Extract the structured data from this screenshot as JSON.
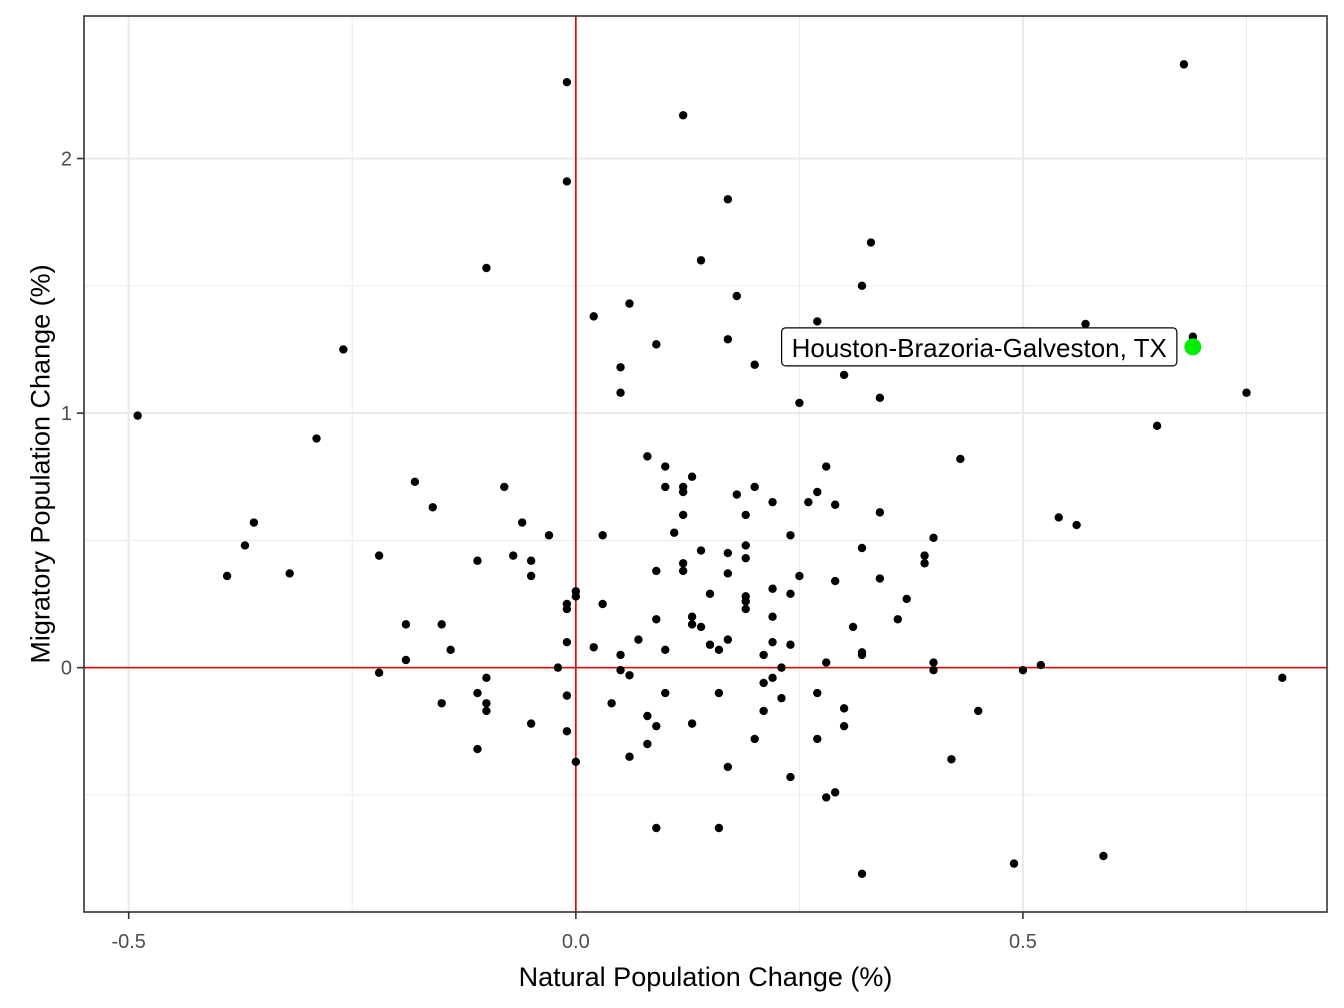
{
  "chart_data": {
    "type": "scatter",
    "title": "",
    "xlabel": "Natural Population Change (%)",
    "ylabel": "Migratory Population Change (%)",
    "xlim": [
      -0.55,
      0.84
    ],
    "ylim": [
      -0.96,
      2.56
    ],
    "x_ticks": [
      {
        "value": -0.5,
        "label": "-0.5"
      },
      {
        "value": 0.0,
        "label": "0.0"
      },
      {
        "value": 0.5,
        "label": "0.5"
      }
    ],
    "y_ticks": [
      {
        "value": 0,
        "label": "0"
      },
      {
        "value": 1,
        "label": "1"
      },
      {
        "value": 2,
        "label": "2"
      }
    ],
    "x_minor_ticks": [
      -0.25,
      0.25,
      0.75
    ],
    "y_minor_ticks": [
      -0.5,
      0.5,
      1.5
    ],
    "grid": true,
    "reference_lines": {
      "x": 0,
      "y": 0,
      "color": "#dd0000"
    },
    "point_color": "#000000",
    "highlight": {
      "x": 0.69,
      "y": 1.26,
      "label": "Houston-Brazoria-Galveston, TX",
      "color": "#00ee00"
    },
    "points": [
      [
        -0.49,
        0.99
      ],
      [
        -0.39,
        0.36
      ],
      [
        -0.37,
        0.48
      ],
      [
        -0.36,
        0.57
      ],
      [
        -0.32,
        0.37
      ],
      [
        -0.29,
        0.9
      ],
      [
        -0.26,
        1.25
      ],
      [
        -0.22,
        0.44
      ],
      [
        -0.22,
        -0.02
      ],
      [
        -0.19,
        0.17
      ],
      [
        -0.19,
        0.03
      ],
      [
        -0.18,
        0.73
      ],
      [
        -0.16,
        0.63
      ],
      [
        -0.15,
        0.17
      ],
      [
        -0.15,
        -0.14
      ],
      [
        -0.14,
        0.07
      ],
      [
        -0.11,
        0.42
      ],
      [
        -0.11,
        -0.1
      ],
      [
        -0.11,
        -0.32
      ],
      [
        -0.1,
        1.57
      ],
      [
        -0.1,
        -0.04
      ],
      [
        -0.1,
        -0.14
      ],
      [
        -0.1,
        -0.17
      ],
      [
        -0.08,
        0.71
      ],
      [
        -0.07,
        0.44
      ],
      [
        -0.06,
        0.57
      ],
      [
        -0.05,
        0.42
      ],
      [
        -0.05,
        0.36
      ],
      [
        -0.05,
        -0.22
      ],
      [
        -0.03,
        0.52
      ],
      [
        -0.02,
        0.0
      ],
      [
        -0.01,
        2.3
      ],
      [
        -0.01,
        1.91
      ],
      [
        -0.01,
        0.25
      ],
      [
        -0.01,
        0.23
      ],
      [
        -0.01,
        0.1
      ],
      [
        -0.01,
        -0.11
      ],
      [
        -0.01,
        -0.25
      ],
      [
        0.0,
        0.3
      ],
      [
        0.0,
        0.28
      ],
      [
        0.0,
        -0.37
      ],
      [
        0.02,
        1.38
      ],
      [
        0.02,
        0.08
      ],
      [
        0.03,
        0.52
      ],
      [
        0.03,
        0.25
      ],
      [
        0.04,
        -0.14
      ],
      [
        0.05,
        1.18
      ],
      [
        0.05,
        1.08
      ],
      [
        0.05,
        0.05
      ],
      [
        0.05,
        -0.01
      ],
      [
        0.06,
        1.43
      ],
      [
        0.06,
        -0.03
      ],
      [
        0.06,
        -0.35
      ],
      [
        0.07,
        0.11
      ],
      [
        0.08,
        0.83
      ],
      [
        0.08,
        -0.19
      ],
      [
        0.08,
        -0.3
      ],
      [
        0.09,
        1.27
      ],
      [
        0.09,
        0.38
      ],
      [
        0.09,
        0.19
      ],
      [
        0.09,
        -0.23
      ],
      [
        0.09,
        -0.63
      ],
      [
        0.1,
        0.79
      ],
      [
        0.1,
        0.71
      ],
      [
        0.1,
        0.07
      ],
      [
        0.1,
        -0.1
      ],
      [
        0.11,
        0.53
      ],
      [
        0.12,
        2.17
      ],
      [
        0.12,
        0.71
      ],
      [
        0.12,
        0.69
      ],
      [
        0.12,
        0.6
      ],
      [
        0.12,
        0.41
      ],
      [
        0.12,
        0.38
      ],
      [
        0.13,
        0.75
      ],
      [
        0.13,
        0.2
      ],
      [
        0.13,
        0.17
      ],
      [
        0.13,
        -0.22
      ],
      [
        0.14,
        1.6
      ],
      [
        0.14,
        0.46
      ],
      [
        0.14,
        0.16
      ],
      [
        0.15,
        0.29
      ],
      [
        0.15,
        0.09
      ],
      [
        0.16,
        0.07
      ],
      [
        0.16,
        -0.1
      ],
      [
        0.16,
        -0.63
      ],
      [
        0.17,
        1.84
      ],
      [
        0.17,
        1.29
      ],
      [
        0.17,
        0.45
      ],
      [
        0.17,
        0.37
      ],
      [
        0.17,
        0.11
      ],
      [
        0.17,
        -0.39
      ],
      [
        0.18,
        1.46
      ],
      [
        0.18,
        0.68
      ],
      [
        0.19,
        0.6
      ],
      [
        0.19,
        0.48
      ],
      [
        0.19,
        0.43
      ],
      [
        0.19,
        0.28
      ],
      [
        0.19,
        0.26
      ],
      [
        0.19,
        0.23
      ],
      [
        0.2,
        0.71
      ],
      [
        0.2,
        1.19
      ],
      [
        0.2,
        -0.28
      ],
      [
        0.21,
        0.05
      ],
      [
        0.21,
        -0.06
      ],
      [
        0.21,
        -0.17
      ],
      [
        0.22,
        0.65
      ],
      [
        0.22,
        0.31
      ],
      [
        0.22,
        0.2
      ],
      [
        0.22,
        0.1
      ],
      [
        0.22,
        -0.04
      ],
      [
        0.23,
        0.0
      ],
      [
        0.23,
        -0.12
      ],
      [
        0.24,
        0.52
      ],
      [
        0.24,
        0.29
      ],
      [
        0.24,
        0.09
      ],
      [
        0.24,
        -0.43
      ],
      [
        0.25,
        1.04
      ],
      [
        0.25,
        0.36
      ],
      [
        0.26,
        0.65
      ],
      [
        0.27,
        1.36
      ],
      [
        0.27,
        0.69
      ],
      [
        0.27,
        -0.1
      ],
      [
        0.27,
        -0.28
      ],
      [
        0.28,
        0.79
      ],
      [
        0.28,
        0.02
      ],
      [
        0.28,
        -0.51
      ],
      [
        0.29,
        0.64
      ],
      [
        0.29,
        0.34
      ],
      [
        0.29,
        -0.49
      ],
      [
        0.3,
        1.15
      ],
      [
        0.3,
        -0.16
      ],
      [
        0.3,
        -0.23
      ],
      [
        0.31,
        0.16
      ],
      [
        0.32,
        1.5
      ],
      [
        0.32,
        0.47
      ],
      [
        0.32,
        0.06
      ],
      [
        0.32,
        0.05
      ],
      [
        0.32,
        -0.81
      ],
      [
        0.33,
        1.67
      ],
      [
        0.34,
        1.06
      ],
      [
        0.34,
        0.61
      ],
      [
        0.34,
        0.35
      ],
      [
        0.36,
        0.19
      ],
      [
        0.37,
        0.27
      ],
      [
        0.39,
        0.44
      ],
      [
        0.39,
        0.41
      ],
      [
        0.4,
        0.51
      ],
      [
        0.4,
        0.02
      ],
      [
        0.4,
        -0.01
      ],
      [
        0.42,
        -0.36
      ],
      [
        0.43,
        0.82
      ],
      [
        0.45,
        -0.17
      ],
      [
        0.49,
        -0.77
      ],
      [
        0.5,
        -0.01
      ],
      [
        0.52,
        0.01
      ],
      [
        0.54,
        0.59
      ],
      [
        0.56,
        0.56
      ],
      [
        0.57,
        1.35
      ],
      [
        0.59,
        -0.74
      ],
      [
        0.65,
        0.95
      ],
      [
        0.68,
        2.37
      ],
      [
        0.69,
        1.3
      ],
      [
        0.75,
        1.08
      ],
      [
        0.79,
        -0.04
      ]
    ]
  }
}
